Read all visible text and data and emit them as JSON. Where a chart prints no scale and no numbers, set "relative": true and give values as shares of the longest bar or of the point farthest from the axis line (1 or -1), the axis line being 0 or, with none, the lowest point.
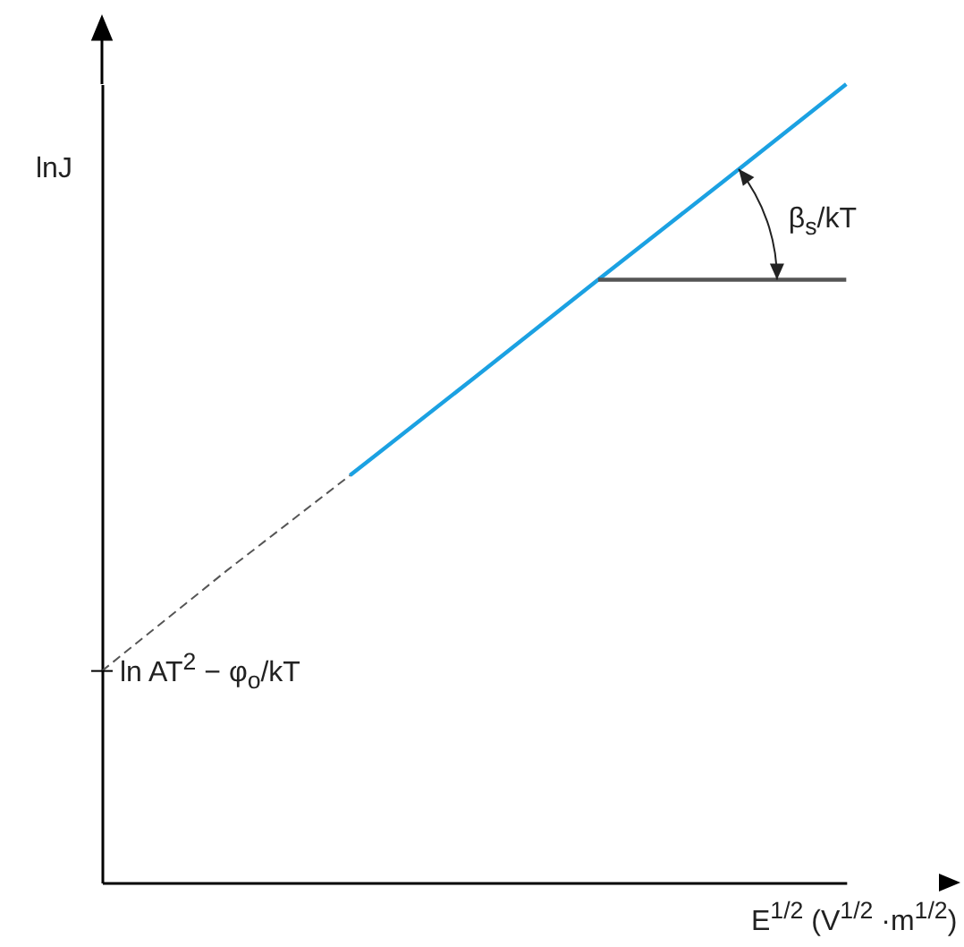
{
  "chart_data": {
    "type": "line",
    "relative": true,
    "grid": false,
    "xlabel": "E$^{1/2}$ (V$^{1/2}$ ·m$^{1/2}$)",
    "ylabel": "lnJ",
    "categories": [
      null,
      null,
      null,
      null,
      null,
      null,
      null
    ],
    "series": [
      {
        "color": "#555555",
        "line_style": "dashed",
        "values": [
          0.265,
          0.39,
          0.51,
          null,
          null,
          null,
          null
        ]
      },
      {
        "color": "#1ba1e2",
        "line_style": "solid",
        "values": [
          null,
          null,
          0.51,
          0.632,
          0.755,
          0.877,
          1
        ]
      },
      {
        "color": "#555555",
        "line_style": "solid",
        "values": [
          null,
          null,
          null,
          null,
          0.755,
          0.755,
          0.755
        ]
      }
    ],
    "annotations": [
      "ln AT$^{2}$ − φ$_{o}$/kT",
      "β$_{s}$/kT"
    ]
  }
}
